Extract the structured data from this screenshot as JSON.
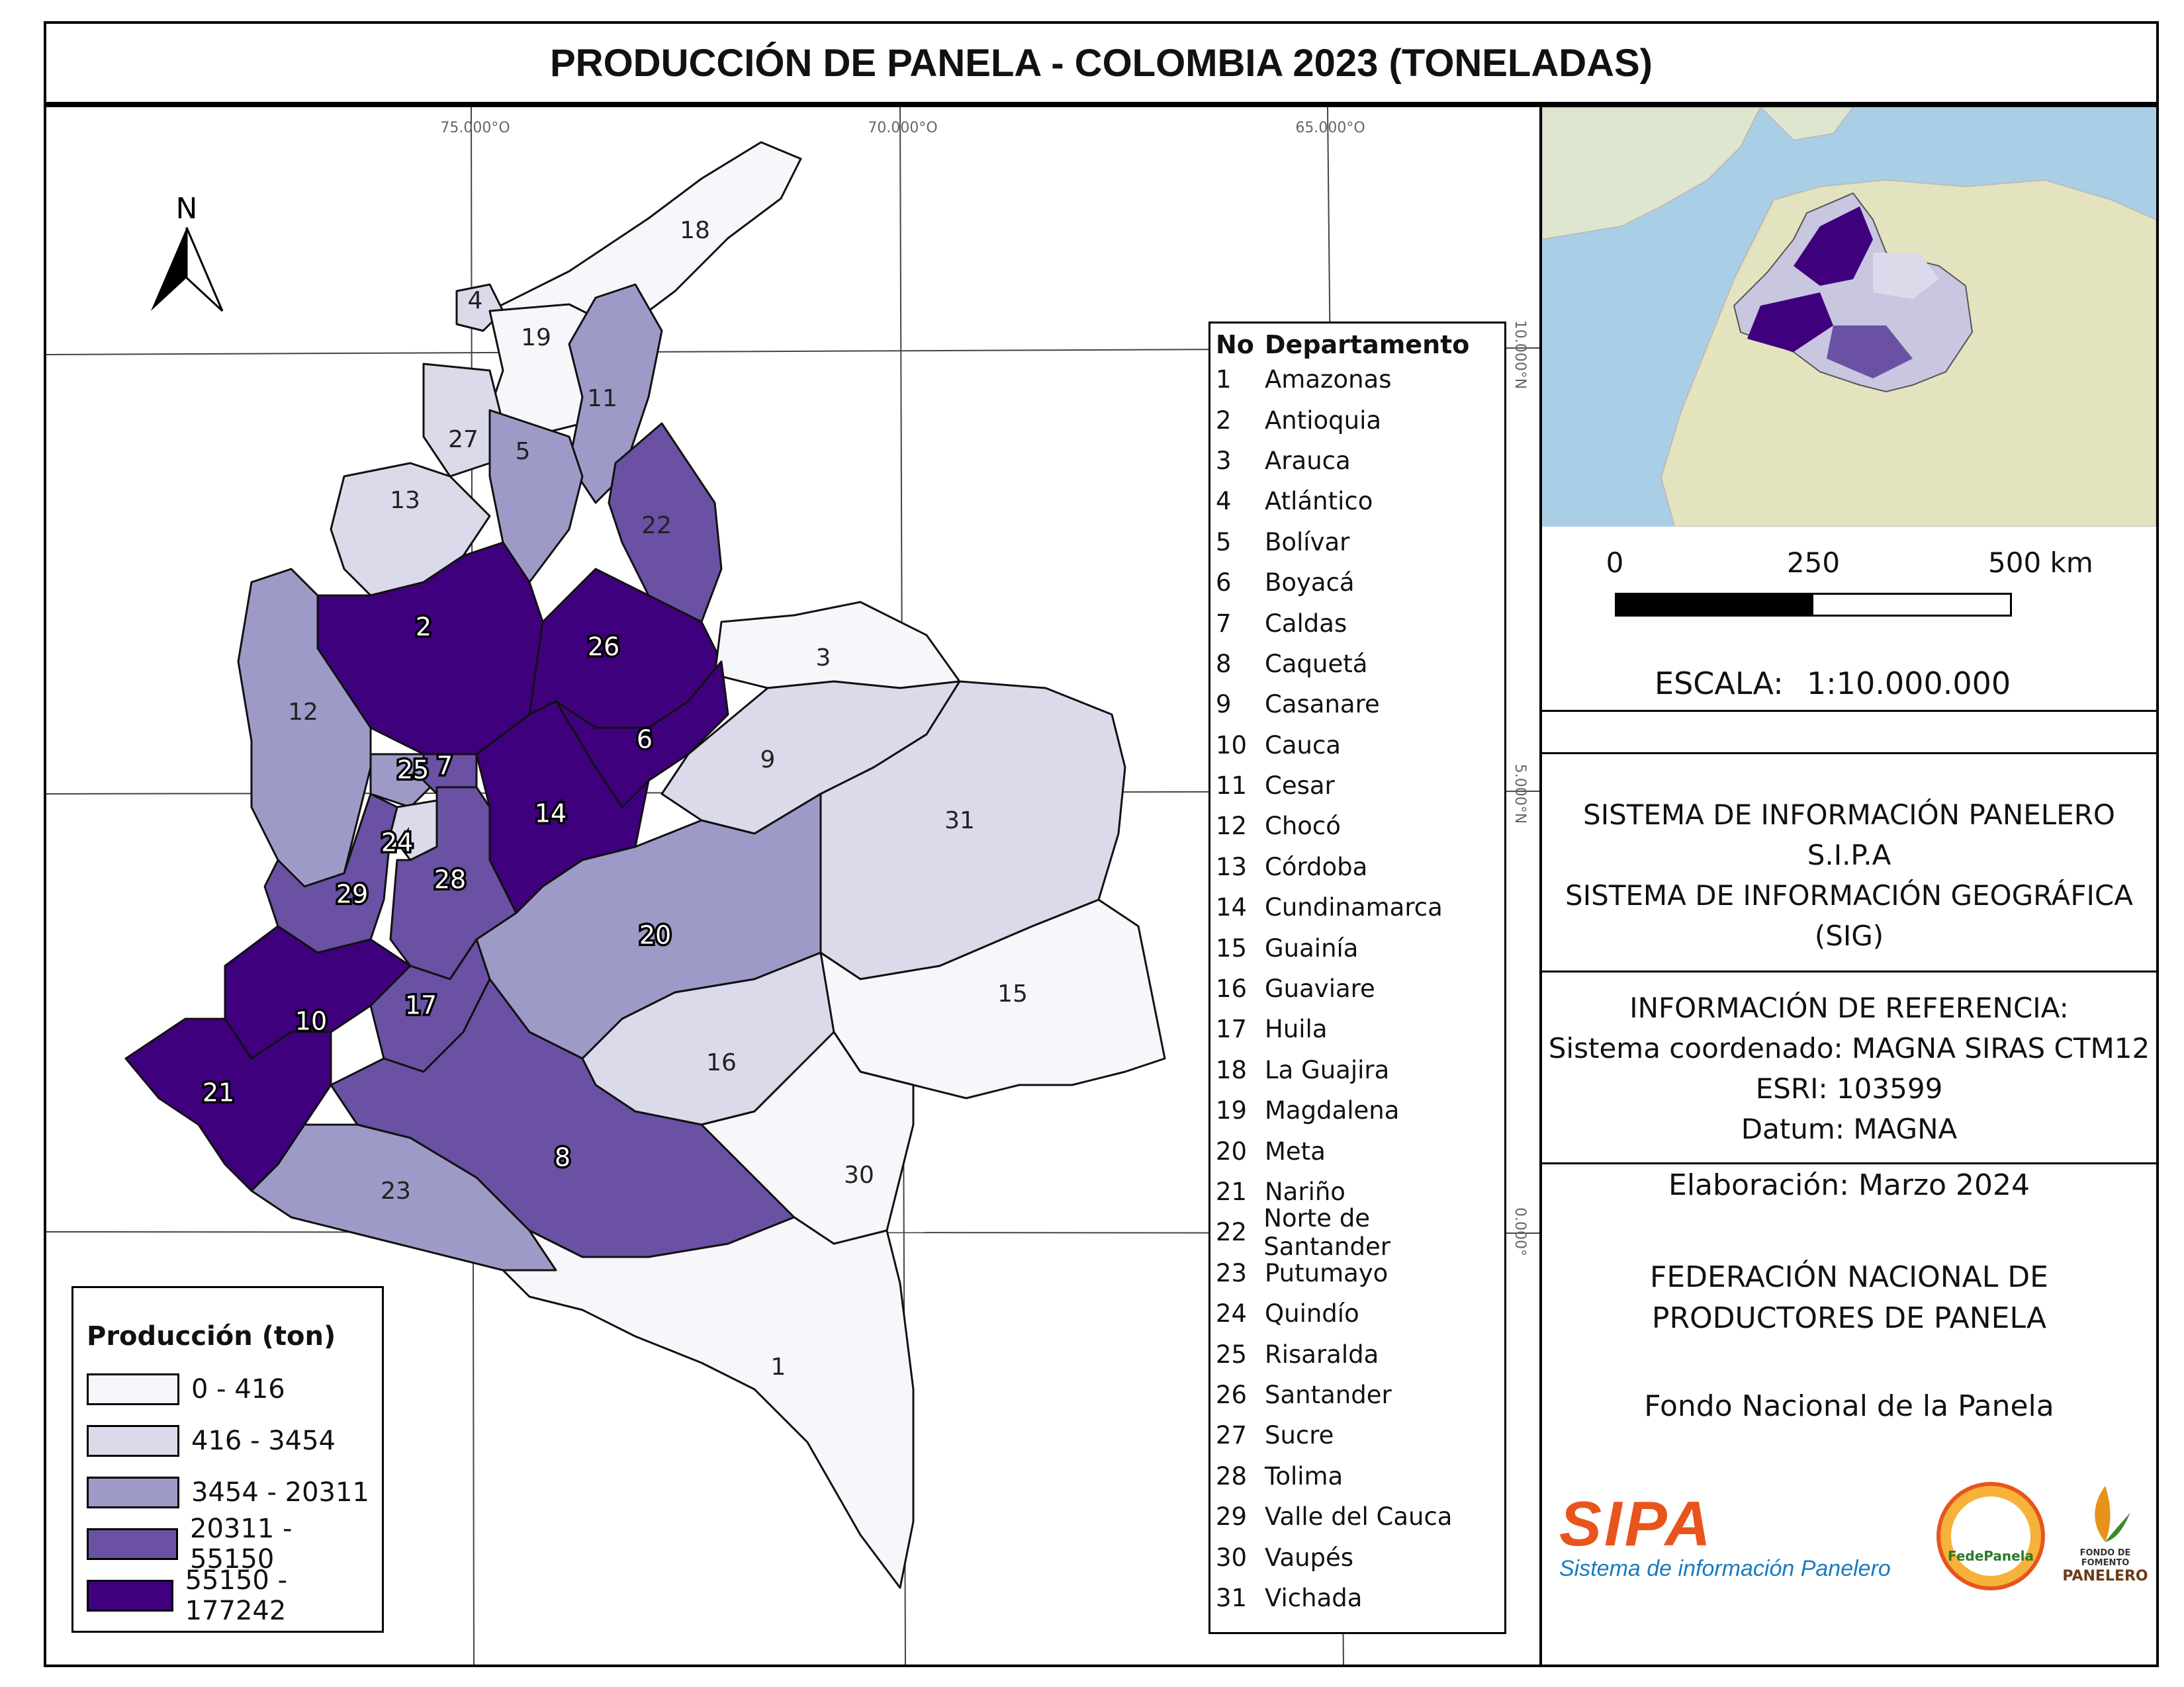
{
  "title": "PRODUCCIÓN DE PANELA - COLOMBIA 2023 (TONELADAS)",
  "north_arrow": "N",
  "coords": {
    "lon": [
      "75.000°O",
      "70.000°O",
      "65.000°O"
    ],
    "lat": [
      "10.000°N",
      "5.000°N",
      "0.000°"
    ]
  },
  "legend": {
    "title": "Producción (ton)",
    "classes": [
      {
        "label": "0 - 416",
        "color": "#f7f7fb"
      },
      {
        "label": "416 - 3454",
        "color": "#dadaeb"
      },
      {
        "label": "3454 - 20311",
        "color": "#9e9ac8"
      },
      {
        "label": "20311 - 55150",
        "color": "#6a51a3"
      },
      {
        "label": "55150 - 177242",
        "color": "#3f007d"
      }
    ]
  },
  "table": {
    "header_no": "No",
    "header_dep": "Departamento",
    "rows": [
      {
        "no": "1",
        "name": "Amazonas"
      },
      {
        "no": "2",
        "name": "Antioquia"
      },
      {
        "no": "3",
        "name": "Arauca"
      },
      {
        "no": "4",
        "name": "Atlántico"
      },
      {
        "no": "5",
        "name": "Bolívar"
      },
      {
        "no": "6",
        "name": "Boyacá"
      },
      {
        "no": "7",
        "name": "Caldas"
      },
      {
        "no": "8",
        "name": "Caquetá"
      },
      {
        "no": "9",
        "name": "Casanare"
      },
      {
        "no": "10",
        "name": "Cauca"
      },
      {
        "no": "11",
        "name": "Cesar"
      },
      {
        "no": "12",
        "name": "Chocó"
      },
      {
        "no": "13",
        "name": "Córdoba"
      },
      {
        "no": "14",
        "name": "Cundinamarca"
      },
      {
        "no": "15",
        "name": "Guainía"
      },
      {
        "no": "16",
        "name": "Guaviare"
      },
      {
        "no": "17",
        "name": "Huila"
      },
      {
        "no": "18",
        "name": "La Guajira"
      },
      {
        "no": "19",
        "name": "Magdalena"
      },
      {
        "no": "20",
        "name": "Meta"
      },
      {
        "no": "21",
        "name": "Nariño"
      },
      {
        "no": "22",
        "name": "Norte de Santander"
      },
      {
        "no": "23",
        "name": "Putumayo"
      },
      {
        "no": "24",
        "name": "Quindío"
      },
      {
        "no": "25",
        "name": "Risaralda"
      },
      {
        "no": "26",
        "name": "Santander"
      },
      {
        "no": "27",
        "name": "Sucre"
      },
      {
        "no": "28",
        "name": "Tolima"
      },
      {
        "no": "29",
        "name": "Valle del Cauca"
      },
      {
        "no": "30",
        "name": "Vaupés"
      },
      {
        "no": "31",
        "name": "Vichada"
      }
    ]
  },
  "departments": [
    {
      "no": "1",
      "class": 0
    },
    {
      "no": "2",
      "class": 4
    },
    {
      "no": "3",
      "class": 0
    },
    {
      "no": "4",
      "class": 1
    },
    {
      "no": "5",
      "class": 2
    },
    {
      "no": "6",
      "class": 4
    },
    {
      "no": "7",
      "class": 3
    },
    {
      "no": "8",
      "class": 3
    },
    {
      "no": "9",
      "class": 1
    },
    {
      "no": "10",
      "class": 4
    },
    {
      "no": "11",
      "class": 2
    },
    {
      "no": "12",
      "class": 2
    },
    {
      "no": "13",
      "class": 1
    },
    {
      "no": "14",
      "class": 4
    },
    {
      "no": "15",
      "class": 0
    },
    {
      "no": "16",
      "class": 1
    },
    {
      "no": "17",
      "class": 3
    },
    {
      "no": "18",
      "class": 0
    },
    {
      "no": "19",
      "class": 0
    },
    {
      "no": "20",
      "class": 2
    },
    {
      "no": "21",
      "class": 4
    },
    {
      "no": "22",
      "class": 3
    },
    {
      "no": "23",
      "class": 2
    },
    {
      "no": "24",
      "class": 1
    },
    {
      "no": "25",
      "class": 2
    },
    {
      "no": "26",
      "class": 4
    },
    {
      "no": "27",
      "class": 1
    },
    {
      "no": "28",
      "class": 3
    },
    {
      "no": "29",
      "class": 3
    },
    {
      "no": "30",
      "class": 0
    },
    {
      "no": "31",
      "class": 1
    }
  ],
  "scale_bar": {
    "labels": [
      "0",
      "250",
      "500 km"
    ]
  },
  "scale": {
    "label": "ESCALA:",
    "value": "1:10.000.000"
  },
  "system_info": [
    "SISTEMA DE INFORMACIÓN PANELERO",
    "S.I.P.A",
    "SISTEMA DE INFORMACIÓN GEOGRÁFICA",
    "(SIG)"
  ],
  "reference": [
    "INFORMACIÓN DE REFERENCIA:",
    "Sistema coordenado: MAGNA SIRAS CTM12",
    "ESRI: 103599",
    "Datum: MAGNA"
  ],
  "elaboration": "Elaboración: Marzo 2024",
  "federation": [
    "FEDERACIÓN NACIONAL DE",
    "PRODUCTORES DE PANELA"
  ],
  "fund": "Fondo Nacional de la Panela",
  "logos": {
    "sipa": "SIPA",
    "sipa_sub": "Sistema de información Panelero",
    "fedepanela": "FedePanela",
    "fondo_1": "FONDO DE FOMENTO",
    "fondo_2": "PANELERO"
  }
}
